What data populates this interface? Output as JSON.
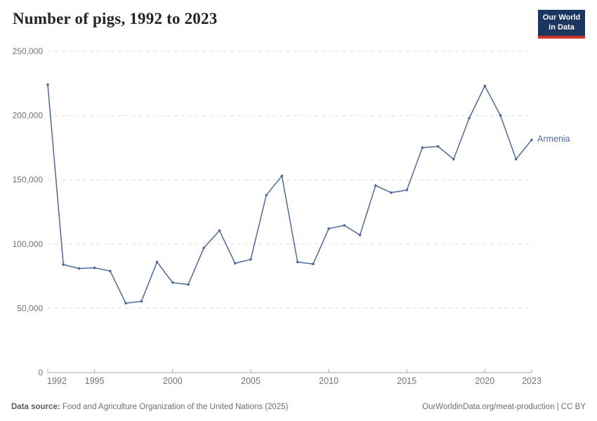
{
  "header": {
    "title": "Number of pigs, 1992 to 2023",
    "logo_line1": "Our World",
    "logo_line2": "in Data"
  },
  "chart_data": {
    "type": "line",
    "title": "Number of pigs, 1992 to 2023",
    "xlabel": "",
    "ylabel": "",
    "x_range": [
      1992,
      2023
    ],
    "ylim": [
      0,
      250000
    ],
    "x_ticks": [
      1992,
      1995,
      2000,
      2005,
      2010,
      2015,
      2020,
      2023
    ],
    "y_ticks": [
      0,
      50000,
      100000,
      150000,
      200000,
      250000
    ],
    "grid": "horizontal dashed",
    "legend_position": "end-of-line label",
    "x": [
      1992,
      1993,
      1994,
      1995,
      1996,
      1997,
      1998,
      1999,
      2000,
      2001,
      2002,
      2003,
      2004,
      2005,
      2006,
      2007,
      2008,
      2009,
      2010,
      2011,
      2012,
      2013,
      2014,
      2015,
      2016,
      2017,
      2018,
      2019,
      2020,
      2021,
      2022,
      2023
    ],
    "series": [
      {
        "name": "Armenia",
        "color": "#4C6A9C",
        "values": [
          224000,
          84000,
          81000,
          81500,
          79000,
          54000,
          55500,
          86000,
          70000,
          68500,
          97000,
          110500,
          85000,
          88000,
          138000,
          153000,
          86000,
          84500,
          112000,
          114500,
          107000,
          145500,
          140000,
          142000,
          175000,
          176000,
          166000,
          198000,
          223000,
          200000,
          166000,
          181000
        ]
      }
    ]
  },
  "footer": {
    "source_label": "Data source:",
    "source_text": "Food and Agriculture Organization of the United Nations (2025)",
    "link_text": "OurWorldinData.org/meat-production | CC BY"
  },
  "colors": {
    "line": "#4C6A9C",
    "grid": "#dedede",
    "axis": "#a9a9a9",
    "tick_label": "#737373",
    "logo_bg": "#1b3660",
    "logo_red": "#d1342b"
  }
}
